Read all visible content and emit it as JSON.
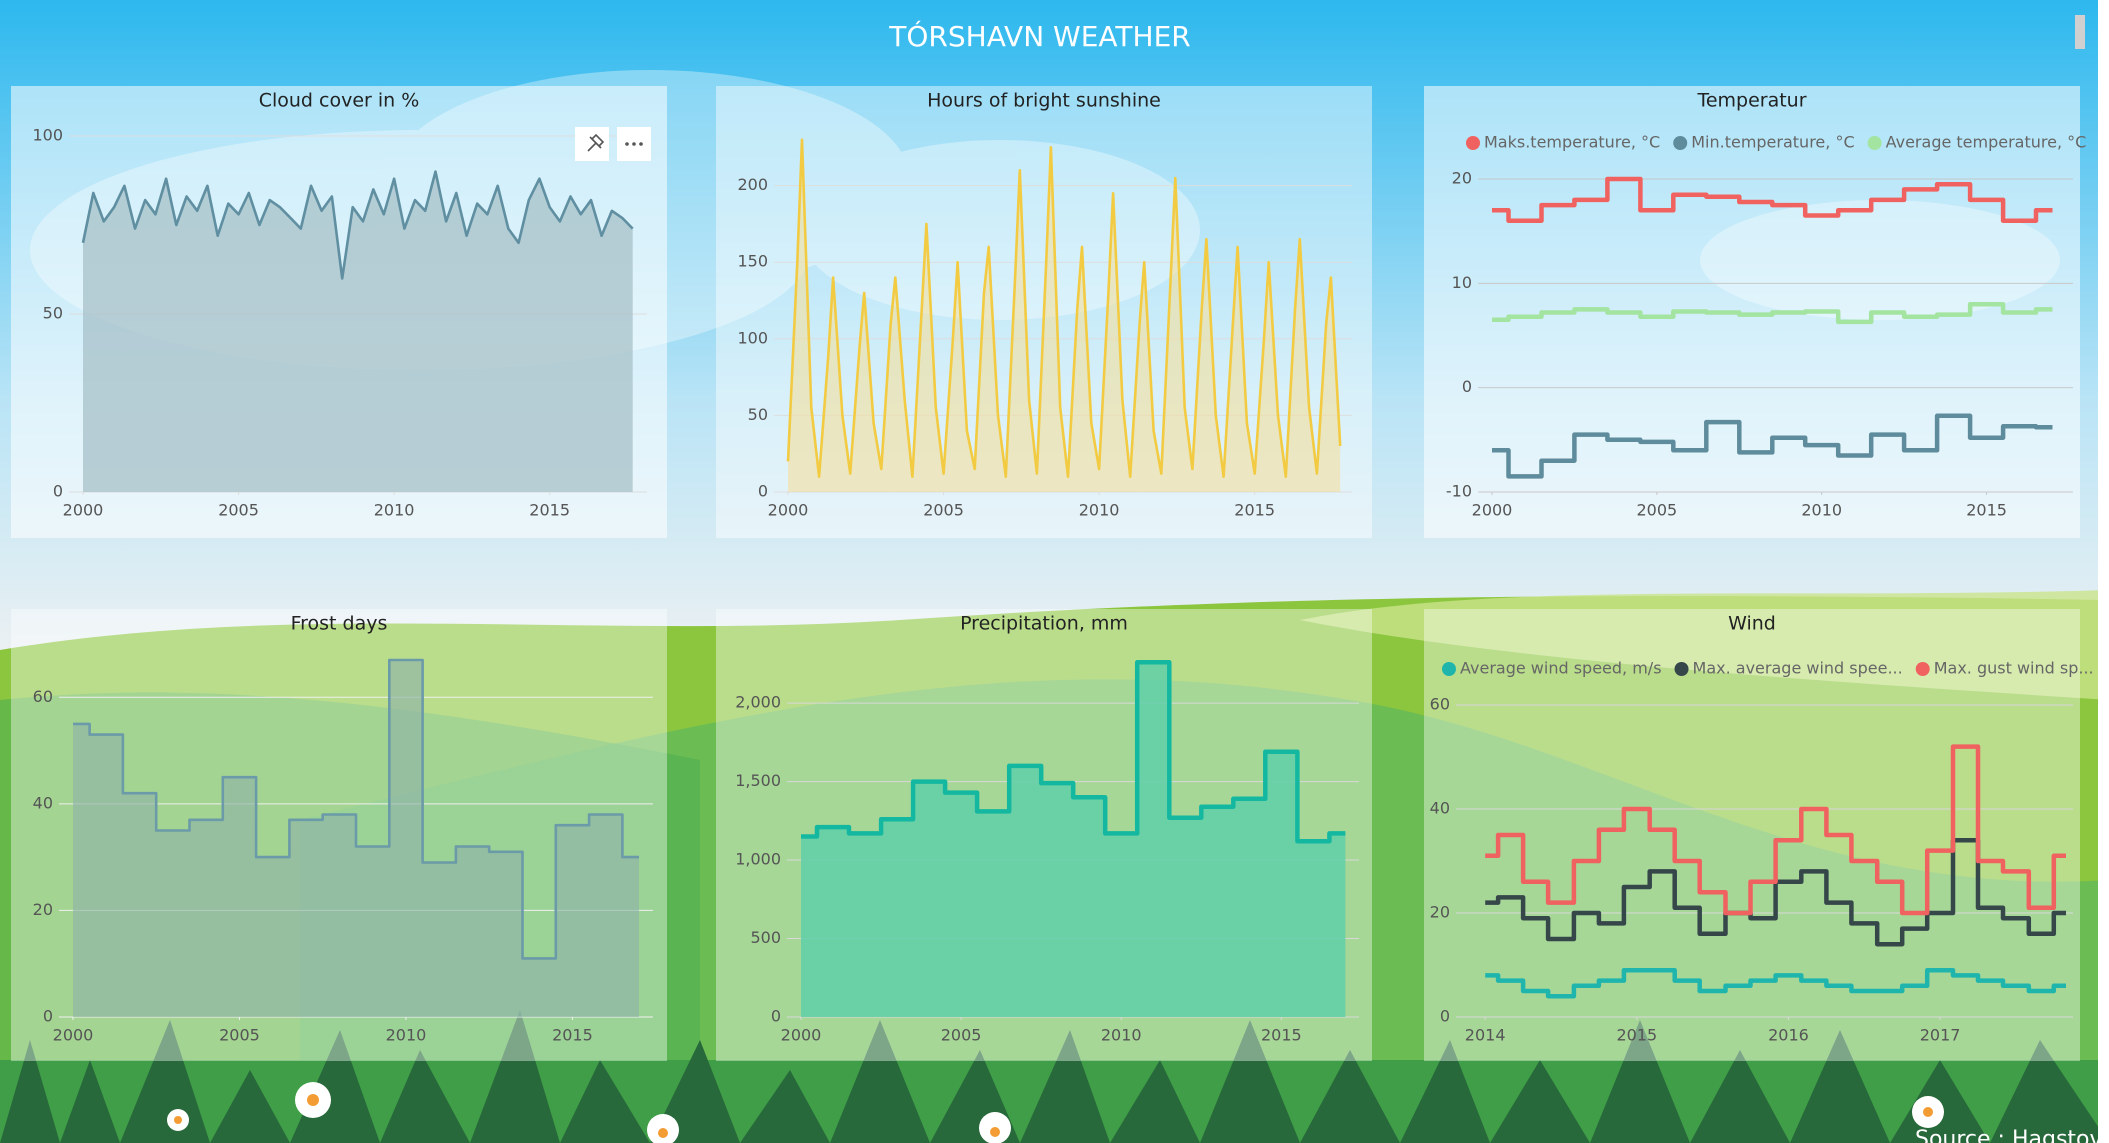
{
  "title": "TÓRSHAVN WEATHER",
  "source": "Source : Hagstova",
  "chart_data": [
    {
      "type": "line",
      "title": "Cloud cover in %",
      "area": true,
      "step": false,
      "color": "#5f8fa1",
      "fill": "#a7c0c8",
      "x": [
        2000,
        2000.33,
        2000.67,
        2001,
        2001.33,
        2001.67,
        2002,
        2002.33,
        2002.67,
        2003,
        2003.33,
        2003.67,
        2004,
        2004.33,
        2004.67,
        2005,
        2005.33,
        2005.67,
        2006,
        2006.33,
        2006.67,
        2007,
        2007.33,
        2007.67,
        2008,
        2008.33,
        2008.67,
        2009,
        2009.33,
        2009.67,
        2010,
        2010.33,
        2010.67,
        2011,
        2011.33,
        2011.67,
        2012,
        2012.33,
        2012.67,
        2013,
        2013.33,
        2013.67,
        2014,
        2014.33,
        2014.67,
        2015,
        2015.33,
        2015.67,
        2016,
        2016.33,
        2016.67,
        2017,
        2017.33,
        2017.67
      ],
      "values": [
        70,
        84,
        76,
        80,
        86,
        74,
        82,
        78,
        88,
        75,
        83,
        79,
        86,
        72,
        81,
        78,
        84,
        75,
        82,
        80,
        77,
        74,
        86,
        79,
        83,
        60,
        80,
        76,
        85,
        78,
        88,
        74,
        82,
        79,
        90,
        76,
        84,
        72,
        81,
        78,
        86,
        74,
        70,
        82,
        88,
        80,
        76,
        83,
        78,
        82,
        72,
        79,
        77,
        74
      ],
      "xlim": [
        2000,
        2018
      ],
      "xticks": [
        2000,
        2005,
        2010,
        2015
      ],
      "ylim": [
        0,
        100
      ],
      "yticks": [
        0,
        50,
        100
      ],
      "grid": true
    },
    {
      "type": "line",
      "title": "Hours of bright sunshine",
      "area": true,
      "step": false,
      "color": "#f2cb43",
      "fill": "#f4df9c",
      "x": [
        2000,
        2000.3,
        2000.45,
        2000.75,
        2001,
        2001.3,
        2001.45,
        2001.75,
        2002,
        2002.3,
        2002.45,
        2002.75,
        2003,
        2003.3,
        2003.45,
        2003.75,
        2004,
        2004.3,
        2004.45,
        2004.75,
        2005,
        2005.3,
        2005.45,
        2005.75,
        2006,
        2006.3,
        2006.45,
        2006.75,
        2007,
        2007.3,
        2007.45,
        2007.75,
        2008,
        2008.3,
        2008.45,
        2008.75,
        2009,
        2009.3,
        2009.45,
        2009.75,
        2010,
        2010.3,
        2010.45,
        2010.75,
        2011,
        2011.3,
        2011.45,
        2011.75,
        2012,
        2012.3,
        2012.45,
        2012.75,
        2013,
        2013.3,
        2013.45,
        2013.75,
        2014,
        2014.3,
        2014.45,
        2014.75,
        2015,
        2015.3,
        2015.45,
        2015.75,
        2016,
        2016.3,
        2016.45,
        2016.75,
        2017,
        2017.3,
        2017.45,
        2017.75
      ],
      "values": [
        20,
        150,
        230,
        55,
        10,
        90,
        140,
        50,
        12,
        95,
        130,
        45,
        15,
        110,
        140,
        60,
        10,
        120,
        175,
        55,
        12,
        100,
        150,
        40,
        15,
        130,
        160,
        50,
        10,
        140,
        210,
        60,
        12,
        150,
        225,
        55,
        10,
        120,
        160,
        45,
        15,
        130,
        195,
        60,
        10,
        110,
        150,
        40,
        12,
        140,
        205,
        55,
        15,
        120,
        165,
        50,
        10,
        110,
        160,
        45,
        12,
        100,
        150,
        50,
        10,
        120,
        165,
        55,
        12,
        110,
        140,
        30
      ],
      "xlim": [
        2000,
        2018
      ],
      "xticks": [
        2000,
        2005,
        2010,
        2015
      ],
      "ylim": [
        0,
        235
      ],
      "yticks": [
        0,
        50,
        100,
        150,
        200
      ],
      "grid": true
    },
    {
      "type": "line",
      "title": "Temperatur",
      "area": false,
      "step": true,
      "x": [
        2000,
        2001,
        2002,
        2003,
        2004,
        2005,
        2006,
        2007,
        2008,
        2009,
        2010,
        2011,
        2012,
        2013,
        2014,
        2015,
        2016,
        2017
      ],
      "series": [
        {
          "name": "Maks.temperature, °C",
          "color": "#f0625f",
          "values": [
            17,
            16,
            17.5,
            18,
            20,
            17,
            18.5,
            18.3,
            17.8,
            17.5,
            16.5,
            17,
            18,
            19,
            19.5,
            18,
            16,
            17
          ]
        },
        {
          "name": "Min.temperature, °C",
          "color": "#5f8c9c",
          "values": [
            -6,
            -8.5,
            -7,
            -4.5,
            -5,
            -5.2,
            -6,
            -3.3,
            -6.2,
            -4.8,
            -5.5,
            -6.5,
            -4.5,
            -6,
            -2.7,
            -4.8,
            -3.7,
            -3.8
          ]
        },
        {
          "name": "Average temperature, °C",
          "color": "#a3e4a0",
          "values": [
            6.5,
            6.8,
            7.2,
            7.5,
            7.2,
            6.8,
            7.3,
            7.2,
            7,
            7.2,
            7.3,
            6.3,
            7.2,
            6.8,
            7,
            8,
            7.2,
            7.5
          ]
        }
      ],
      "xlim": [
        2000,
        2017.5
      ],
      "xticks": [
        2000,
        2005,
        2010,
        2015
      ],
      "ylim": [
        -10,
        20
      ],
      "yticks": [
        -10,
        0,
        10,
        20
      ],
      "grid": true
    },
    {
      "type": "line",
      "title": "Frost days",
      "area": true,
      "step": true,
      "color": "#6b9aa8",
      "fill": "#8fb3a8",
      "x": [
        2000,
        2001,
        2002,
        2003,
        2004,
        2005,
        2006,
        2007,
        2008,
        2009,
        2010,
        2011,
        2012,
        2013,
        2014,
        2015,
        2016,
        2017
      ],
      "values": [
        55,
        53,
        42,
        35,
        37,
        45,
        30,
        37,
        38,
        32,
        67,
        29,
        32,
        31,
        11,
        36,
        38,
        30
      ],
      "xlim": [
        2000,
        2017.3
      ],
      "xticks": [
        2000,
        2005,
        2010,
        2015
      ],
      "ylim": [
        0,
        70
      ],
      "yticks": [
        0,
        20,
        40,
        60
      ],
      "grid": true
    },
    {
      "type": "line",
      "title": "Precipitation, mm",
      "area": true,
      "step": true,
      "color": "#14b8a0",
      "fill": "#5fcfa8",
      "x": [
        2000,
        2001,
        2002,
        2003,
        2004,
        2005,
        2006,
        2007,
        2008,
        2009,
        2010,
        2011,
        2012,
        2013,
        2014,
        2015,
        2016,
        2017
      ],
      "values": [
        1150,
        1210,
        1170,
        1260,
        1500,
        1430,
        1310,
        1600,
        1490,
        1400,
        1170,
        2260,
        1270,
        1340,
        1390,
        1690,
        1120,
        1170
      ],
      "xlim": [
        2000,
        2017.3
      ],
      "xticks": [
        2000,
        2005,
        2010,
        2015
      ],
      "ylim": [
        0,
        2300
      ],
      "yticks": [
        0,
        500,
        {
          "value": 1000,
          "label": "1,000"
        },
        {
          "value": 1500,
          "label": "1,500"
        },
        {
          "value": 2000,
          "label": "2,000"
        }
      ],
      "grid": true
    },
    {
      "type": "line",
      "title": "Wind",
      "area": false,
      "step": true,
      "x": [
        2014,
        2014.17,
        2014.33,
        2014.5,
        2014.67,
        2014.83,
        2015,
        2015.17,
        2015.33,
        2015.5,
        2015.67,
        2015.83,
        2016,
        2016.17,
        2016.33,
        2016.5,
        2016.67,
        2016.83,
        2017,
        2017.17,
        2017.33,
        2017.5,
        2017.67,
        2017.83
      ],
      "series": [
        {
          "name": "Average wind speed, m/s",
          "color": "#1fb5ad",
          "values": [
            8,
            7,
            5,
            4,
            6,
            7,
            9,
            9,
            7,
            5,
            6,
            7,
            8,
            7,
            6,
            5,
            5,
            6,
            9,
            8,
            7,
            6,
            5,
            6
          ]
        },
        {
          "name": "Max. average wind spee...",
          "color": "#36474a",
          "values": [
            22,
            23,
            19,
            15,
            20,
            18,
            25,
            28,
            21,
            16,
            20,
            19,
            26,
            28,
            22,
            18,
            14,
            17,
            20,
            34,
            21,
            19,
            16,
            20
          ]
        },
        {
          "name": "Max. gust wind sp...",
          "color": "#f0625f",
          "values": [
            31,
            35,
            26,
            22,
            30,
            36,
            40,
            36,
            30,
            24,
            20,
            26,
            34,
            40,
            35,
            30,
            26,
            20,
            32,
            52,
            30,
            28,
            21,
            31
          ]
        }
      ],
      "xlim": [
        2013.9,
        2017.85
      ],
      "xticks": [
        2014,
        2015,
        2016,
        2017
      ],
      "ylim": [
        0,
        60
      ],
      "yticks": [
        0,
        20,
        40,
        60
      ],
      "grid": true
    }
  ]
}
